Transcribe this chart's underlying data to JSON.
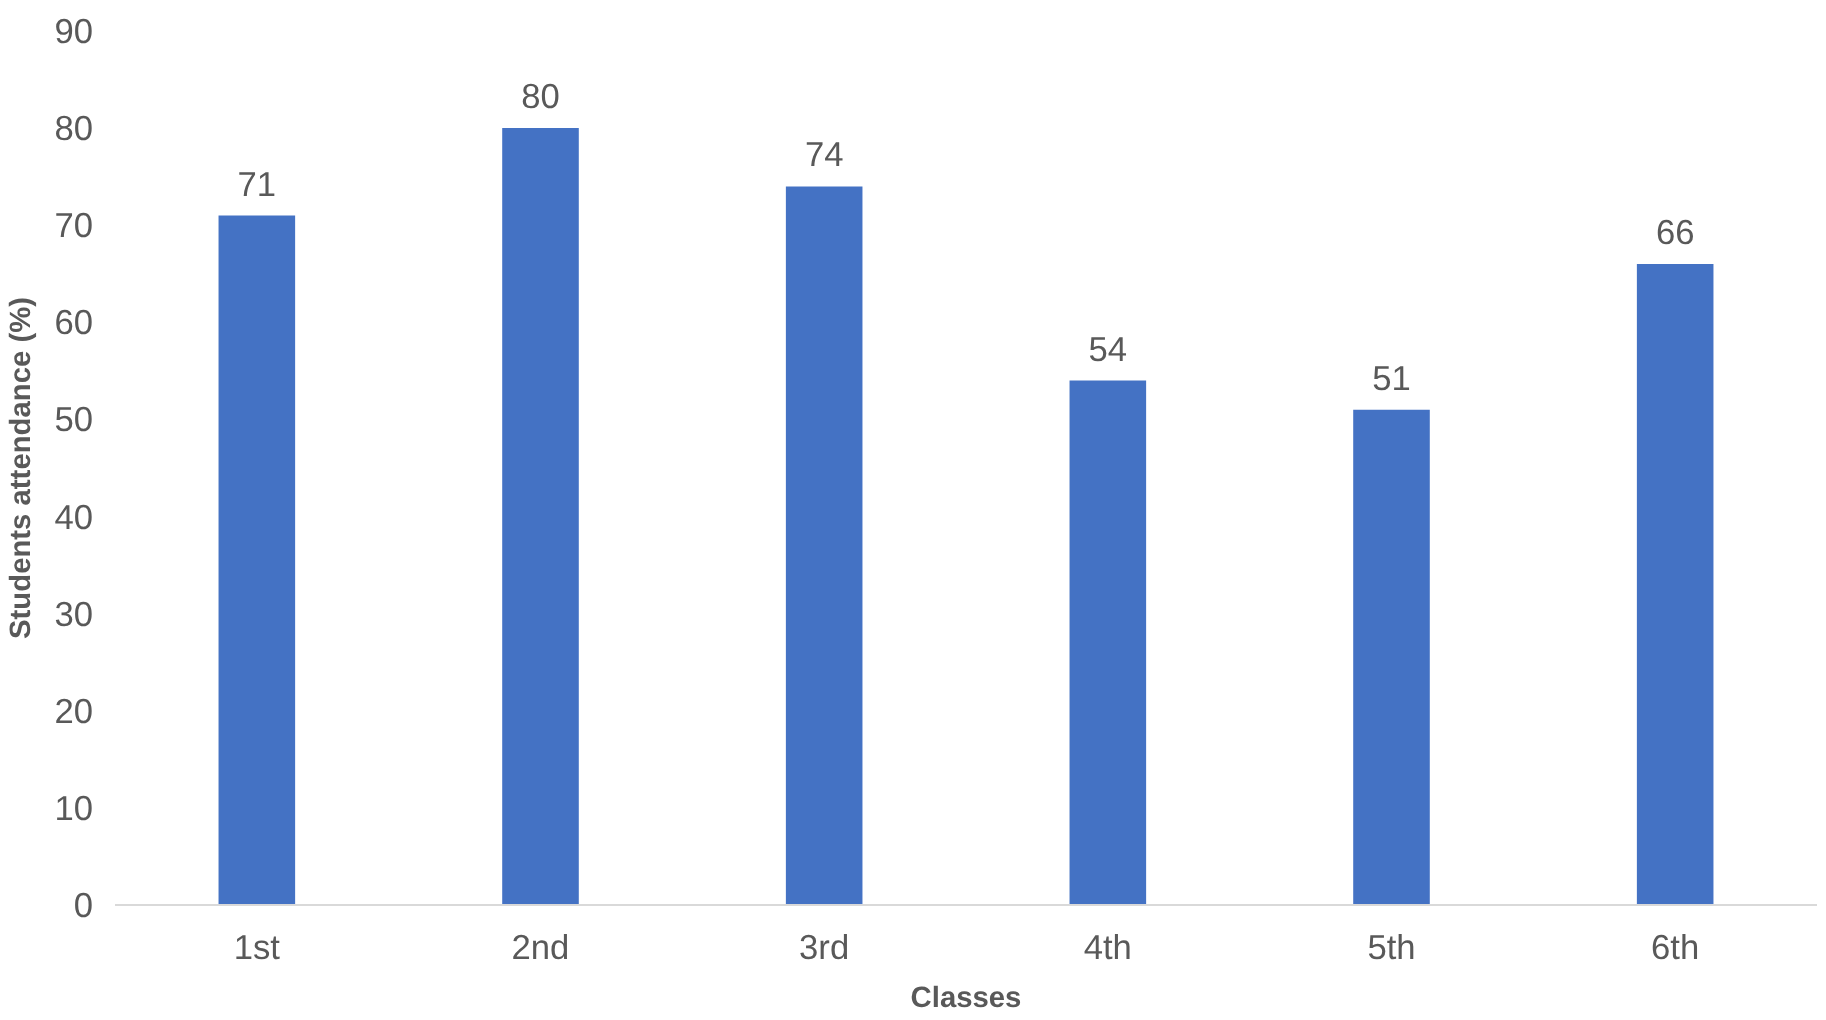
{
  "chart_data": {
    "type": "bar",
    "xlabel": "Classes",
    "ylabel": "Students attendance (%)",
    "categories": [
      "1st",
      "2nd",
      "3rd",
      "4th",
      "5th",
      "6th"
    ],
    "values": [
      71,
      80,
      74,
      54,
      51,
      66
    ],
    "color": "#4472c4",
    "ylim": [
      0,
      90
    ],
    "yticks": [
      0,
      10,
      20,
      30,
      40,
      50,
      60,
      70,
      80,
      90
    ],
    "data_labels": true
  }
}
